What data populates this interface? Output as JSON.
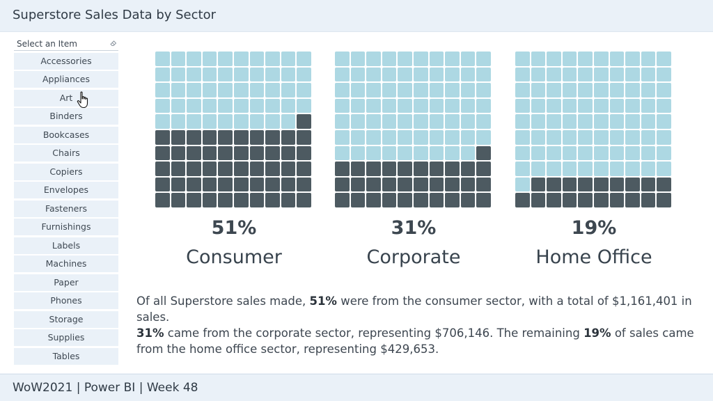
{
  "report": {
    "title": "Superstore Sales Data by Sector",
    "footer": "WoW2021 | Power BI | Week 48"
  },
  "slicer": {
    "header": "Select an Item",
    "clear_icon": "eraser-icon",
    "items": [
      "Accessories",
      "Appliances",
      "Art",
      "Binders",
      "Bookcases",
      "Chairs",
      "Copiers",
      "Envelopes",
      "Fasteners",
      "Furnishings",
      "Labels",
      "Machines",
      "Paper",
      "Phones",
      "Storage",
      "Supplies",
      "Tables"
    ]
  },
  "colors": {
    "filled": "#4d5a61",
    "empty": "#add8e3"
  },
  "chart_data": {
    "type": "waffle",
    "grid": {
      "rows": 10,
      "cols": 10,
      "fill_from": "bottom-right"
    },
    "series": [
      {
        "name": "Consumer",
        "percent_label": "51%",
        "value": 51,
        "sales": "$1,161,401"
      },
      {
        "name": "Corporate",
        "percent_label": "31%",
        "value": 31,
        "sales": "$706,146"
      },
      {
        "name": "Home Office",
        "percent_label": "19%",
        "value": 19,
        "sales": "$429,653"
      }
    ]
  },
  "summary": {
    "s1_a": "Of all Superstore sales made, ",
    "s1_pct": "51%",
    "s1_b": " were from the consumer sector, with a total of $1,161,401 in sales.",
    "s2_pct": "31%",
    "s2_b": " came from the corporate sector, representing $706,146. The remaining ",
    "s3_pct": "19%",
    "s3_b": " of sales came from the home office sector, representing $429,653."
  },
  "cursor": {
    "icon": "hand-pointer-icon"
  }
}
